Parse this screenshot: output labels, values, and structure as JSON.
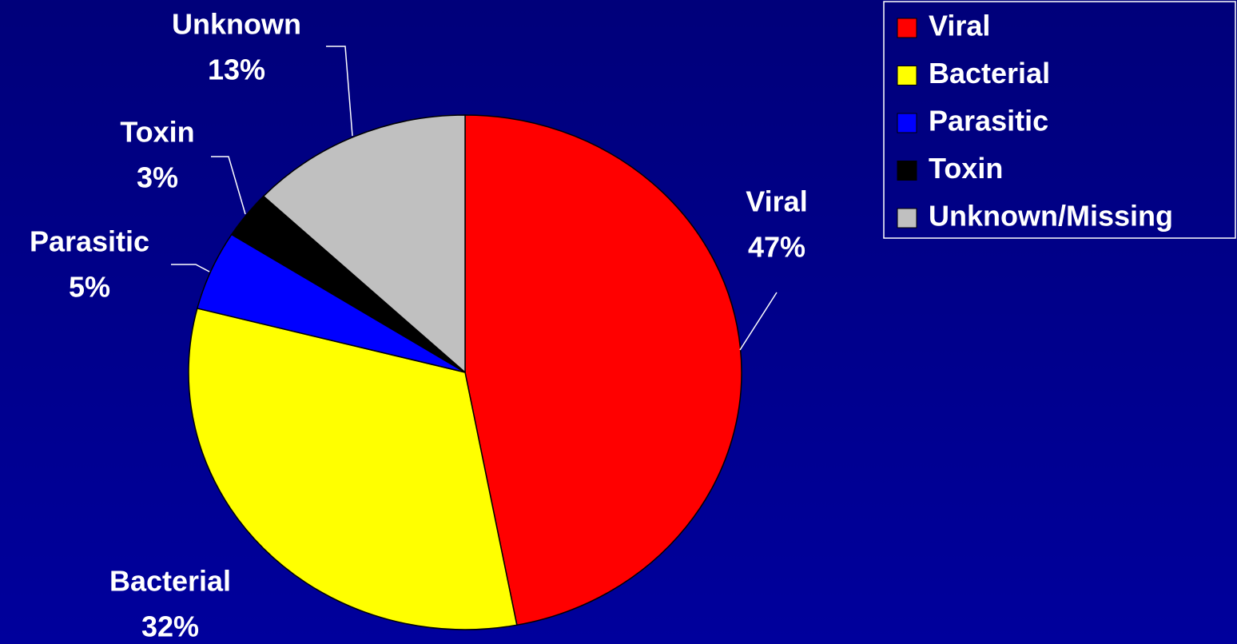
{
  "chart_data": {
    "type": "pie",
    "categories": [
      "Viral",
      "Bacterial",
      "Parasitic",
      "Toxin",
      "Unknown/Missing"
    ],
    "slice_labels": [
      "Viral",
      "Bacterial",
      "Parasitic",
      "Toxin",
      "Unknown"
    ],
    "values": [
      47,
      32,
      5,
      3,
      13
    ],
    "value_labels": [
      "47%",
      "32%",
      "5%",
      "3%",
      "13%"
    ],
    "colors": [
      "#ff0000",
      "#ffff00",
      "#0000ff",
      "#000000",
      "#c0c0c0"
    ],
    "legend": "top-right"
  }
}
